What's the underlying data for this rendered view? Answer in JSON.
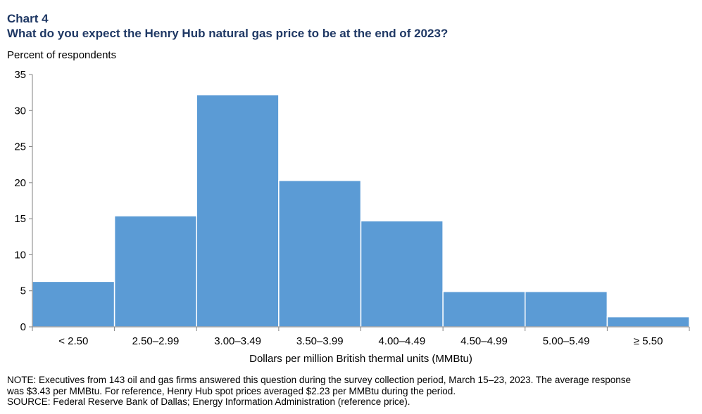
{
  "header": {
    "chart_label": "Chart 4",
    "title": "What do you expect the Henry Hub natural gas price to be at the end of 2023?"
  },
  "chart_data": {
    "type": "bar",
    "title": "What do you expect the Henry Hub natural gas price to be at the end of 2023?",
    "ylabel": "Percent of respondents",
    "xlabel": "Dollars per million British thermal units (MMBtu)",
    "categories": [
      "< 2.50",
      "2.50–2.99",
      "3.00–3.49",
      "3.50–3.99",
      "4.00–4.49",
      "4.50–4.99",
      "5.00–5.49",
      "≥ 5.50"
    ],
    "values": [
      6.3,
      15.4,
      32.2,
      20.3,
      14.7,
      4.9,
      4.9,
      1.4
    ],
    "ylim": [
      0,
      35
    ],
    "yticks": [
      0,
      5,
      10,
      15,
      20,
      25,
      30,
      35
    ],
    "grid": false,
    "bar_color": "#5b9bd5"
  },
  "notes": {
    "line1": "NOTE: Executives from 143 oil and gas firms answered this question during the survey collection period, March 15–23, 2023. The average response",
    "line2": "was $3.43 per MMBtu.  For reference, Henry Hub spot prices averaged $2.23 per MMBtu during the period.",
    "line3": "SOURCE: Federal Reserve Bank of Dallas; Energy Information Administration (reference price)."
  }
}
